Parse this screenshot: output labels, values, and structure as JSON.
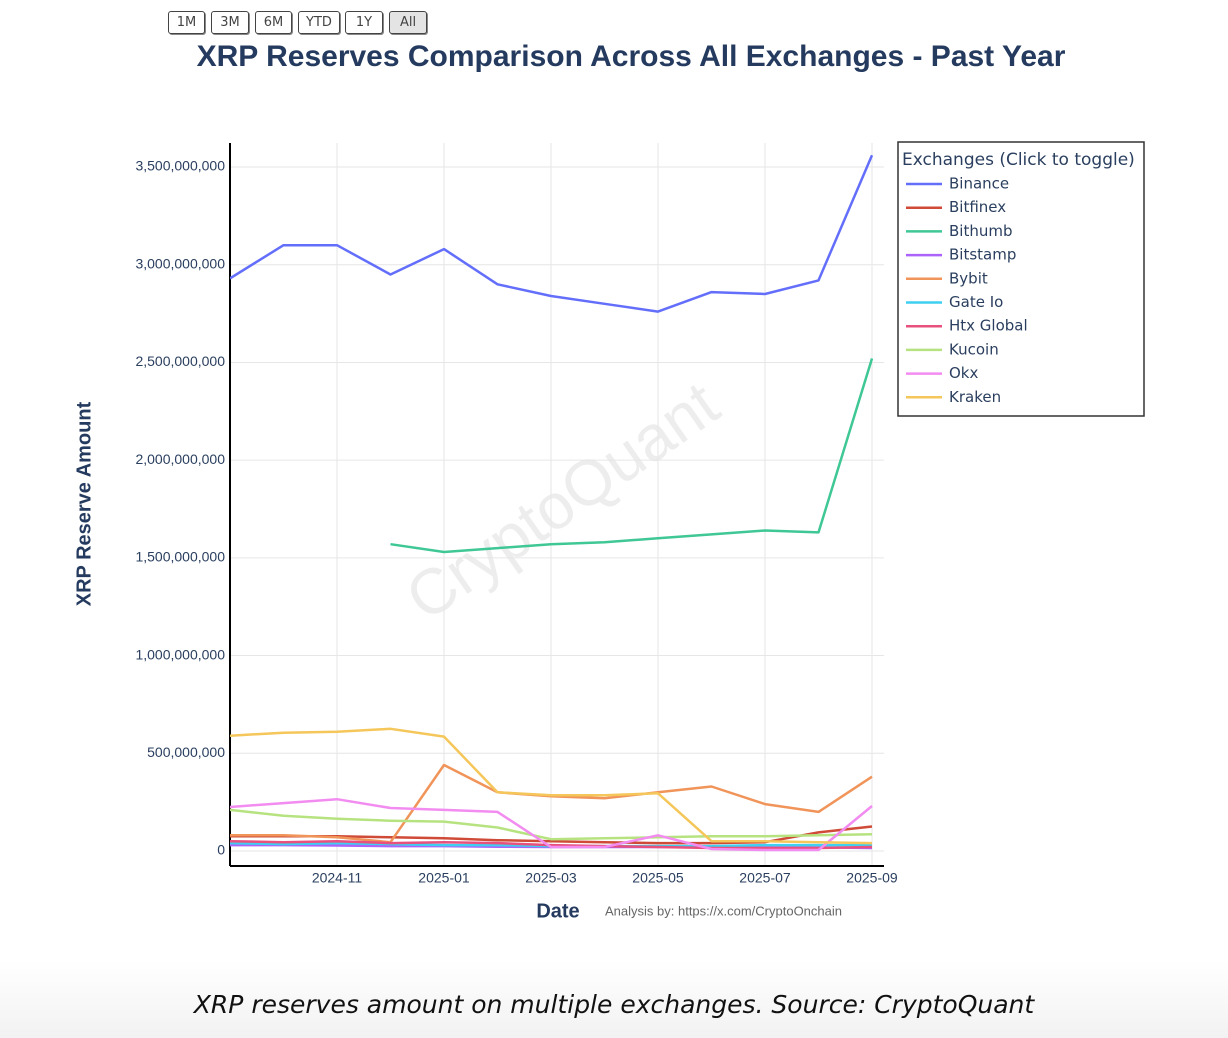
{
  "buttons": [
    "1M",
    "3M",
    "6M",
    "YTD",
    "1Y",
    "All"
  ],
  "chart_data": {
    "type": "line",
    "title": "XRP Reserves Comparison Across All Exchanges - Past Year",
    "x_label": "Date",
    "y_label": "XRP Reserve Amount",
    "annotation": "Analysis by: https://x.com/CryptoOnchain",
    "watermark": "CryptoQuant",
    "legend_title": "Exchanges (Click to toggle)",
    "legend_position": "right",
    "grid": true,
    "x": [
      "2024-09",
      "2024-10",
      "2024-11",
      "2024-12",
      "2025-01",
      "2025-02",
      "2025-03",
      "2025-04",
      "2025-05",
      "2025-06",
      "2025-07",
      "2025-08",
      "2025-09"
    ],
    "xlim": [
      "2024-09",
      "2025-09"
    ],
    "xticks": [
      "2024-11",
      "2025-01",
      "2025-03",
      "2025-05",
      "2025-07",
      "2025-09"
    ],
    "ylim": [
      -77000000,
      3623000000
    ],
    "yticks": [
      0,
      {
        "value": 500000000,
        "label": "500,000,000"
      },
      {
        "value": 1000000000,
        "label": "1,000,000,000"
      },
      {
        "value": 1500000000,
        "label": "1,500,000,000"
      },
      {
        "value": 2000000000,
        "label": "2,000,000,000"
      },
      {
        "value": 2500000000,
        "label": "2,500,000,000"
      },
      {
        "value": 3000000000,
        "label": "3,000,000,000"
      },
      {
        "value": 3500000000,
        "label": "3,500,000,000"
      }
    ],
    "series": [
      {
        "name": "Binance",
        "color": "#636efa",
        "values": [
          2930000000,
          3100000000,
          3100000000,
          2950000000,
          3080000000,
          2900000000,
          2840000000,
          2800000000,
          2760000000,
          2860000000,
          2850000000,
          2920000000,
          3560000000
        ]
      },
      {
        "name": "Bitfinex",
        "color": "#cf4a37",
        "values": [
          75000000,
          75000000,
          75000000,
          70000000,
          65000000,
          55000000,
          50000000,
          45000000,
          40000000,
          40000000,
          45000000,
          95000000,
          125000000
        ]
      },
      {
        "name": "Bithumb",
        "color": "#3fc795",
        "values": [
          null,
          null,
          null,
          1570000000,
          1530000000,
          1550000000,
          1570000000,
          1580000000,
          1600000000,
          1620000000,
          1640000000,
          1630000000,
          2520000000
        ]
      },
      {
        "name": "Bitstamp",
        "color": "#ab63fa",
        "values": [
          30000000,
          30000000,
          28000000,
          25000000,
          25000000,
          22000000,
          20000000,
          20000000,
          20000000,
          18000000,
          18000000,
          18000000,
          15000000
        ]
      },
      {
        "name": "Bybit",
        "color": "#f0945a",
        "values": [
          80000000,
          80000000,
          70000000,
          45000000,
          440000000,
          300000000,
          280000000,
          270000000,
          300000000,
          330000000,
          240000000,
          200000000,
          380000000
        ]
      },
      {
        "name": "Gate Io",
        "color": "#3fcff0",
        "values": [
          40000000,
          35000000,
          40000000,
          35000000,
          30000000,
          30000000,
          25000000,
          25000000,
          25000000,
          25000000,
          30000000,
          30000000,
          30000000
        ]
      },
      {
        "name": "Htx Global",
        "color": "#e8507e",
        "values": [
          50000000,
          45000000,
          50000000,
          40000000,
          45000000,
          40000000,
          30000000,
          25000000,
          20000000,
          15000000,
          15000000,
          15000000,
          20000000
        ]
      },
      {
        "name": "Kucoin",
        "color": "#b6e380",
        "values": [
          210000000,
          180000000,
          165000000,
          155000000,
          150000000,
          120000000,
          60000000,
          65000000,
          70000000,
          75000000,
          75000000,
          80000000,
          85000000
        ]
      },
      {
        "name": "Okx",
        "color": "#f28cf0",
        "values": [
          225000000,
          245000000,
          265000000,
          220000000,
          210000000,
          200000000,
          20000000,
          20000000,
          80000000,
          10000000,
          5000000,
          5000000,
          230000000
        ]
      },
      {
        "name": "Kraken",
        "color": "#f5c65a",
        "values": [
          590000000,
          605000000,
          610000000,
          625000000,
          585000000,
          300000000,
          285000000,
          285000000,
          295000000,
          50000000,
          50000000,
          45000000,
          40000000
        ]
      }
    ]
  },
  "caption": "XRP reserves amount on multiple exchanges. Source: CryptoQuant"
}
